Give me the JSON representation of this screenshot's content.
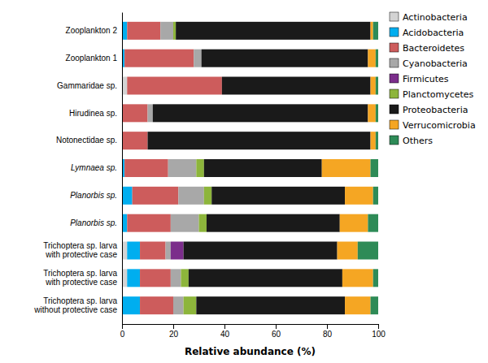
{
  "chart_data": {
    "type": "bar",
    "orientation": "horizontal",
    "stacked": true,
    "x_label": "Relative abundance (%)",
    "categories": [
      "Zooplankton 2",
      "Zooplankton 1",
      "Gammaridae sp.",
      "Hirudinea sp.",
      "Notonectidae sp.",
      "Lymnaea sp.",
      "Planorbis sp.",
      "Planorbis sp.",
      "Trichoptera sp. larva\nwith protective case",
      "Trichoptera sp. larva\nwith protective case",
      "Trichoptera sp. larva\nwithout protective case"
    ],
    "series": [
      {
        "name": "Actinobacteria",
        "color": "#d3d3d3",
        "values": [
          0,
          0,
          2,
          0,
          0,
          0,
          0,
          0,
          2,
          2,
          0
        ]
      },
      {
        "name": "Acidobacteria",
        "color": "#00aeef",
        "values": [
          2,
          1,
          0,
          0,
          0,
          1,
          4,
          2,
          5,
          5,
          7
        ]
      },
      {
        "name": "Bacteroidetes",
        "color": "#cd5c5c",
        "values": [
          13,
          27,
          37,
          10,
          10,
          17,
          18,
          17,
          10,
          12,
          13
        ]
      },
      {
        "name": "Cyanobacteria",
        "color": "#a8a8a8",
        "values": [
          5,
          3,
          0,
          2,
          0,
          11,
          10,
          11,
          2,
          4,
          4
        ]
      },
      {
        "name": "Firmicutes",
        "color": "#7b2d8b",
        "values": [
          0,
          0,
          0,
          0,
          0,
          0,
          0,
          0,
          5,
          0,
          0
        ]
      },
      {
        "name": "Planctomycetes",
        "color": "#8db53b",
        "values": [
          1,
          0,
          0,
          0,
          0,
          3,
          3,
          3,
          0,
          3,
          5
        ]
      },
      {
        "name": "Proteobacteria",
        "color": "#1a1a1a",
        "values": [
          76,
          65,
          58,
          84,
          87,
          46,
          52,
          52,
          60,
          60,
          58
        ]
      },
      {
        "name": "Verrucomicrobia",
        "color": "#f5a623",
        "values": [
          1,
          3,
          2,
          3,
          2,
          19,
          11,
          11,
          8,
          12,
          10
        ]
      },
      {
        "name": "Others",
        "color": "#2e8b57",
        "values": [
          2,
          1,
          1,
          1,
          1,
          3,
          2,
          4,
          8,
          2,
          3
        ]
      }
    ],
    "xlim": [
      0,
      100
    ],
    "xticks": [
      0,
      20,
      40,
      60,
      80,
      100
    ],
    "grid": false,
    "legend": "right"
  }
}
